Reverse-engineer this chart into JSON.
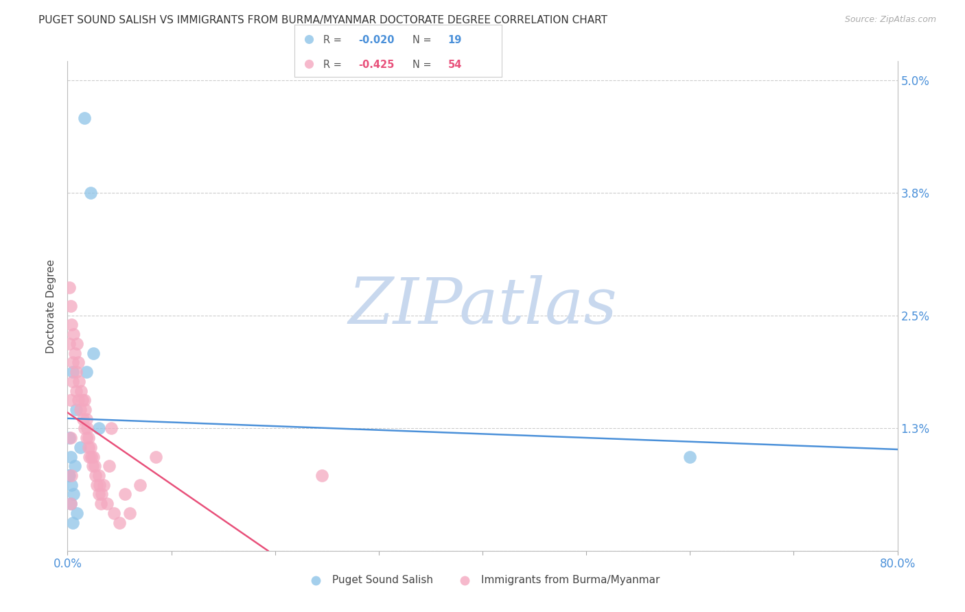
{
  "title": "PUGET SOUND SALISH VS IMMIGRANTS FROM BURMA/MYANMAR DOCTORATE DEGREE CORRELATION CHART",
  "source": "Source: ZipAtlas.com",
  "ylabel": "Doctorate Degree",
  "xlim": [
    0.0,
    0.8
  ],
  "ylim": [
    0.0,
    0.052
  ],
  "yticks": [
    0.0,
    0.013,
    0.025,
    0.038,
    0.05
  ],
  "ytick_labels": [
    "",
    "1.3%",
    "2.5%",
    "3.8%",
    "5.0%"
  ],
  "xticks": [
    0.0,
    0.1,
    0.2,
    0.3,
    0.4,
    0.5,
    0.6,
    0.7,
    0.8
  ],
  "xtick_labels": [
    "0.0%",
    "",
    "",
    "",
    "",
    "",
    "",
    "",
    "80.0%"
  ],
  "grid_color": "#cccccc",
  "background_color": "#ffffff",
  "blue_color": "#8ec4e8",
  "pink_color": "#f4a8c0",
  "blue_line_color": "#4a90d9",
  "pink_line_color": "#e8507a",
  "title_fontsize": 11,
  "source_fontsize": 9,
  "legend_R_blue": "-0.020",
  "legend_N_blue": "19",
  "legend_R_pink": "-0.425",
  "legend_N_pink": "54",
  "legend_label_blue": "Puget Sound Salish",
  "legend_label_pink": "Immigrants from Burma/Myanmar",
  "blue_scatter_x": [
    0.016,
    0.022,
    0.005,
    0.008,
    0.003,
    0.002,
    0.001,
    0.004,
    0.006,
    0.007,
    0.012,
    0.018,
    0.025,
    0.03,
    0.002,
    0.003,
    0.6,
    0.005,
    0.009
  ],
  "blue_scatter_y": [
    0.046,
    0.038,
    0.019,
    0.015,
    0.01,
    0.012,
    0.008,
    0.007,
    0.006,
    0.009,
    0.011,
    0.019,
    0.021,
    0.013,
    0.008,
    0.005,
    0.01,
    0.003,
    0.004
  ],
  "pink_scatter_x": [
    0.002,
    0.003,
    0.004,
    0.005,
    0.005,
    0.006,
    0.007,
    0.008,
    0.008,
    0.009,
    0.01,
    0.01,
    0.011,
    0.012,
    0.013,
    0.014,
    0.015,
    0.016,
    0.016,
    0.017,
    0.018,
    0.018,
    0.019,
    0.02,
    0.02,
    0.021,
    0.022,
    0.023,
    0.024,
    0.025,
    0.026,
    0.027,
    0.028,
    0.03,
    0.03,
    0.031,
    0.032,
    0.033,
    0.035,
    0.038,
    0.04,
    0.042,
    0.045,
    0.05,
    0.055,
    0.06,
    0.07,
    0.085,
    0.002,
    0.003,
    0.004,
    0.003,
    0.245,
    0.003
  ],
  "pink_scatter_y": [
    0.022,
    0.026,
    0.024,
    0.02,
    0.018,
    0.023,
    0.021,
    0.019,
    0.017,
    0.022,
    0.02,
    0.016,
    0.018,
    0.015,
    0.017,
    0.016,
    0.014,
    0.016,
    0.013,
    0.015,
    0.012,
    0.014,
    0.013,
    0.011,
    0.012,
    0.01,
    0.011,
    0.01,
    0.009,
    0.01,
    0.009,
    0.008,
    0.007,
    0.008,
    0.006,
    0.007,
    0.005,
    0.006,
    0.007,
    0.005,
    0.009,
    0.013,
    0.004,
    0.003,
    0.006,
    0.004,
    0.007,
    0.01,
    0.028,
    0.016,
    0.008,
    0.012,
    0.008,
    0.005
  ],
  "watermark_zip": "ZIP",
  "watermark_atlas": "atlas",
  "watermark_color_zip": "#c8d8ee",
  "watermark_color_atlas": "#c8d8ee",
  "watermark_fontsize": 68
}
